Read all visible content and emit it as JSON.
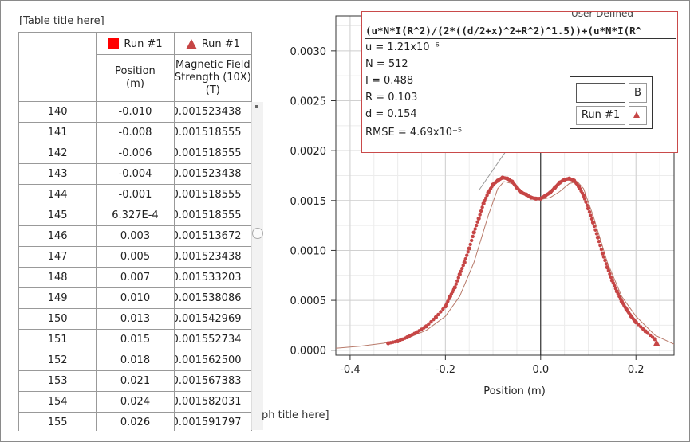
{
  "table": {
    "title": "[Table title here]",
    "run1_label": "Run #1",
    "run2_label": "Run #1",
    "col_position": "Position\n(m)",
    "col_field": "Magnetic Field\nStrength (10X)\n(T)",
    "rows": [
      {
        "i": "140",
        "x": "-0.010",
        "b": "0.001523438"
      },
      {
        "i": "141",
        "x": "-0.008",
        "b": "0.001518555"
      },
      {
        "i": "142",
        "x": "-0.006",
        "b": "0.001518555"
      },
      {
        "i": "143",
        "x": "-0.004",
        "b": "0.001523438"
      },
      {
        "i": "144",
        "x": "-0.001",
        "b": "0.001518555"
      },
      {
        "i": "145",
        "x": "6.327E-4",
        "b": "0.001518555"
      },
      {
        "i": "146",
        "x": "0.003",
        "b": "0.001513672"
      },
      {
        "i": "147",
        "x": "0.005",
        "b": "0.001523438"
      },
      {
        "i": "148",
        "x": "0.007",
        "b": "0.001533203"
      },
      {
        "i": "149",
        "x": "0.010",
        "b": "0.001538086"
      },
      {
        "i": "150",
        "x": "0.013",
        "b": "0.001542969"
      },
      {
        "i": "151",
        "x": "0.015",
        "b": "0.001552734"
      },
      {
        "i": "152",
        "x": "0.018",
        "b": "0.001562500"
      },
      {
        "i": "153",
        "x": "0.021",
        "b": "0.001567383"
      },
      {
        "i": "154",
        "x": "0.024",
        "b": "0.001582031"
      },
      {
        "i": "155",
        "x": "0.026",
        "b": "0.001591797"
      }
    ]
  },
  "graph": {
    "title": "[Graph title here]",
    "title_visible": "ph title here]"
  },
  "fit": {
    "header": "User Defined",
    "equation": "(u*N*I(R^2)/(2*((d/2+x)^2+R^2)^1.5))+(u*N*I(R^",
    "u": "u = 1.21x10⁻⁶",
    "N": "N = 512",
    "I": "I  = 0.488",
    "R": "R = 0.103",
    "d": "d = 0.154",
    "rmse": "RMSE = 4.69x10⁻⁵"
  },
  "legend": {
    "b_label": "B",
    "run_label": "Run #1"
  },
  "colors": {
    "data": "#c64545",
    "fit": "#b87a6a",
    "run_square": "#ff0000"
  },
  "chart_data": {
    "type": "scatter",
    "xlabel": "Position (m)",
    "ylabel": "",
    "xlim": [
      -0.43,
      0.28
    ],
    "ylim": [
      -5e-05,
      0.00335
    ],
    "x_ticks": [
      -0.4,
      -0.2,
      0.0,
      0.2
    ],
    "x_tick_labels": [
      "-0.4",
      "-0.2",
      "0.0",
      "0.2"
    ],
    "y_ticks": [
      0.0,
      0.0005,
      0.001,
      0.0015,
      0.002,
      0.0025,
      0.003
    ],
    "y_tick_labels": [
      "0.0000",
      "0.0005",
      "0.0010",
      "0.0015",
      "0.0020",
      "0.0025",
      "0.0030"
    ],
    "grid": true,
    "series": [
      {
        "name": "Run #1",
        "x": [
          -0.32,
          -0.3,
          -0.28,
          -0.26,
          -0.24,
          -0.22,
          -0.2,
          -0.19,
          -0.18,
          -0.17,
          -0.16,
          -0.15,
          -0.14,
          -0.13,
          -0.12,
          -0.11,
          -0.1,
          -0.09,
          -0.08,
          -0.07,
          -0.06,
          -0.05,
          -0.04,
          -0.03,
          -0.02,
          -0.01,
          0.0,
          0.01,
          0.02,
          0.03,
          0.04,
          0.05,
          0.06,
          0.07,
          0.08,
          0.09,
          0.1,
          0.11,
          0.12,
          0.13,
          0.14,
          0.15,
          0.16,
          0.17,
          0.18,
          0.19,
          0.2,
          0.22,
          0.24
        ],
        "y": [
          7e-05,
          9e-05,
          0.00013,
          0.00018,
          0.00024,
          0.00033,
          0.00044,
          0.00054,
          0.00063,
          0.00076,
          0.00088,
          0.00102,
          0.00118,
          0.00132,
          0.00147,
          0.00158,
          0.00166,
          0.0017,
          0.00173,
          0.00172,
          0.00169,
          0.00163,
          0.00158,
          0.00156,
          0.00153,
          0.00152,
          0.00152,
          0.00155,
          0.00158,
          0.00163,
          0.00168,
          0.00171,
          0.00172,
          0.0017,
          0.00164,
          0.00155,
          0.00142,
          0.00128,
          0.00113,
          0.00097,
          0.00083,
          0.0007,
          0.00059,
          0.00049,
          0.00041,
          0.00034,
          0.00028,
          0.00019,
          0.00011
        ]
      },
      {
        "name": "User Defined",
        "x": [
          -0.43,
          -0.38,
          -0.33,
          -0.28,
          -0.24,
          -0.2,
          -0.17,
          -0.14,
          -0.11,
          -0.09,
          -0.077,
          -0.06,
          -0.04,
          -0.02,
          0.0,
          0.02,
          0.04,
          0.06,
          0.077,
          0.09,
          0.11,
          0.14,
          0.17,
          0.2,
          0.24,
          0.28
        ],
        "y": [
          2e-05,
          4e-05,
          7e-05,
          0.00012,
          0.0002,
          0.00034,
          0.00054,
          0.00088,
          0.00135,
          0.00162,
          0.00169,
          0.00167,
          0.00159,
          0.00153,
          0.00151,
          0.00153,
          0.00159,
          0.00167,
          0.00169,
          0.00162,
          0.00135,
          0.00088,
          0.00054,
          0.00034,
          0.00015,
          6e-05
        ]
      }
    ]
  }
}
